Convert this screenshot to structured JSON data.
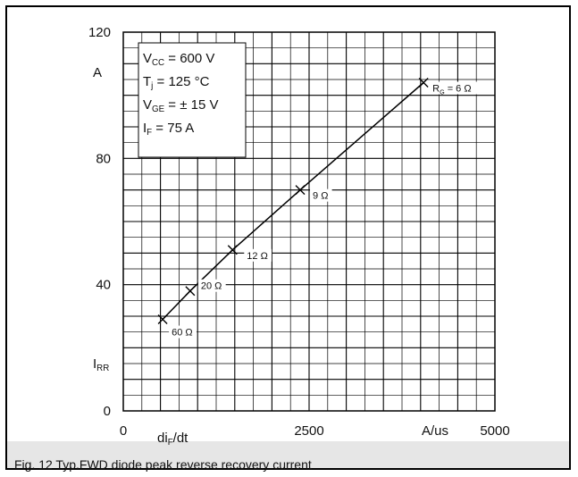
{
  "caption": "Fig. 12 Typ.FWD diode peak reverse recovery current",
  "chart_data": {
    "type": "line",
    "xlim": [
      0,
      5000
    ],
    "ylim": [
      0,
      120
    ],
    "x_tick_labels": [
      "0",
      "2500",
      "5000"
    ],
    "x_tick_values": [
      0,
      2500,
      5000
    ],
    "y_tick_labels": [
      "0",
      "40",
      "80",
      "120"
    ],
    "y_tick_values": [
      0,
      40,
      80,
      120
    ],
    "xlabel": "di_F/dt",
    "xunit": "A/us",
    "ylabel": "I_RR",
    "yunit": "A",
    "grid": true,
    "line_color": "#000000",
    "legend_box": [
      {
        "main": "V",
        "sub": "CC",
        "rest": " = 600 V"
      },
      {
        "main": "T",
        "sub": "j",
        "rest": " = 125 °C"
      },
      {
        "main": "V",
        "sub": "GE",
        "rest": " = ± 15 V"
      },
      {
        "main": "I",
        "sub": "F",
        "rest": " = 75 A"
      }
    ],
    "series": [
      {
        "x": [
          530,
          900,
          1470,
          2380,
          4040
        ],
        "y": [
          29,
          38,
          51,
          70,
          104
        ],
        "point_labels": [
          {
            "main": "",
            "sub": "",
            "rest": "60 Ω"
          },
          {
            "main": "",
            "sub": "",
            "rest": "20 Ω"
          },
          {
            "main": "",
            "sub": "",
            "rest": "12 Ω"
          },
          {
            "main": "",
            "sub": "",
            "rest": "9 Ω"
          },
          {
            "main": "R",
            "sub": "G",
            "rest": " = 6 Ω"
          }
        ]
      }
    ]
  }
}
